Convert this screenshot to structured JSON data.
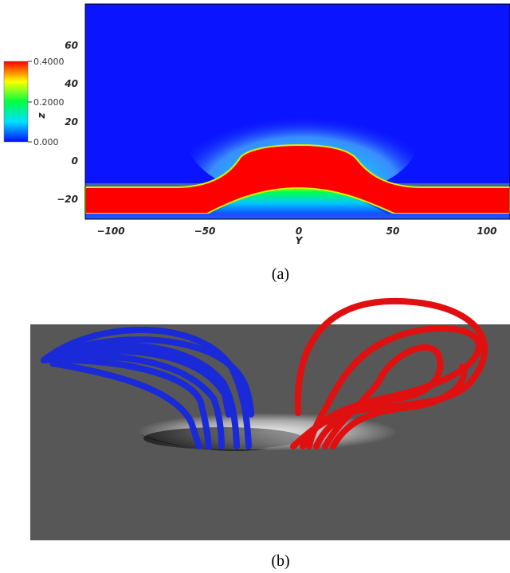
{
  "panel_a": {
    "z_ticks": [
      "60",
      "40",
      "20",
      "0",
      "−20"
    ],
    "y_ticks": [
      "−100",
      "−50",
      "0",
      "50",
      "100"
    ],
    "x_axis_label": "Y",
    "z_axis_label": "z",
    "colorbar_labels": [
      "0.4000",
      "0.2000",
      "0.000"
    ],
    "caption": "(a)"
  },
  "panel_b": {
    "caption": "(b)"
  }
}
